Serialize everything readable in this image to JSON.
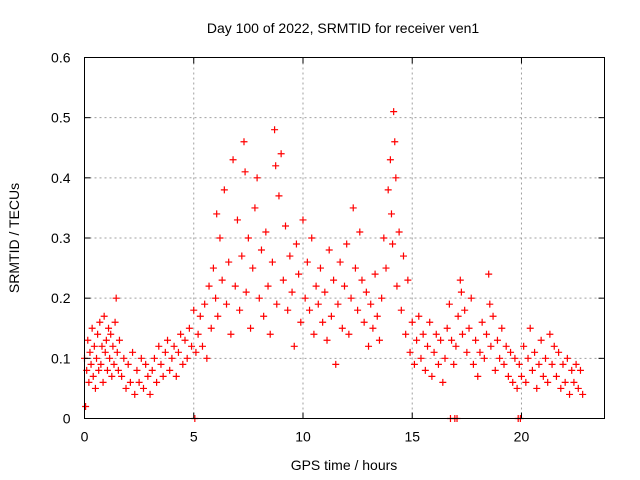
{
  "chart_data": {
    "type": "scatter",
    "title": "Day 100 of 2022, SRMTID for receiver ven1",
    "xlabel": "GPS time / hours",
    "ylabel": "SRMTID / TECUs",
    "xlim": [
      0,
      23.8
    ],
    "ylim": [
      0,
      0.6
    ],
    "xticks": [
      0,
      5,
      10,
      15,
      20
    ],
    "xtick_labels": [
      "0",
      "5",
      "10",
      "15",
      "20"
    ],
    "yticks": [
      0,
      0.1,
      0.2,
      0.3,
      0.4,
      0.5,
      0.6
    ],
    "ytick_labels": [
      "0",
      "0.1",
      "0.2",
      "0.3",
      "0.4",
      "0.5",
      "0.6"
    ],
    "grid": true,
    "marker": "plus",
    "series": [
      {
        "name": "SRMTID",
        "color": "#ff0000",
        "points": [
          [
            0.0,
            0.1
          ],
          [
            0.05,
            0.02
          ],
          [
            0.1,
            0.08
          ],
          [
            0.15,
            0.13
          ],
          [
            0.2,
            0.06
          ],
          [
            0.25,
            0.11
          ],
          [
            0.3,
            0.09
          ],
          [
            0.35,
            0.15
          ],
          [
            0.4,
            0.07
          ],
          [
            0.45,
            0.12
          ],
          [
            0.5,
            0.05
          ],
          [
            0.55,
            0.1
          ],
          [
            0.6,
            0.14
          ],
          [
            0.65,
            0.08
          ],
          [
            0.7,
            0.16
          ],
          [
            0.75,
            0.09
          ],
          [
            0.8,
            0.12
          ],
          [
            0.85,
            0.06
          ],
          [
            0.9,
            0.17
          ],
          [
            0.95,
            0.11
          ],
          [
            1.0,
            0.13
          ],
          [
            1.05,
            0.08
          ],
          [
            1.1,
            0.15
          ],
          [
            1.15,
            0.1
          ],
          [
            1.2,
            0.14
          ],
          [
            1.25,
            0.07
          ],
          [
            1.3,
            0.12
          ],
          [
            1.35,
            0.09
          ],
          [
            1.4,
            0.16
          ],
          [
            1.45,
            0.2
          ],
          [
            1.5,
            0.11
          ],
          [
            1.55,
            0.08
          ],
          [
            1.6,
            0.13
          ],
          [
            1.7,
            0.07
          ],
          [
            1.8,
            0.1
          ],
          [
            1.9,
            0.05
          ],
          [
            2.0,
            0.09
          ],
          [
            2.1,
            0.06
          ],
          [
            2.2,
            0.11
          ],
          [
            2.3,
            0.04
          ],
          [
            2.4,
            0.08
          ],
          [
            2.5,
            0.06
          ],
          [
            2.6,
            0.1
          ],
          [
            2.7,
            0.05
          ],
          [
            2.8,
            0.09
          ],
          [
            2.9,
            0.07
          ],
          [
            3.0,
            0.04
          ],
          [
            3.1,
            0.08
          ],
          [
            3.2,
            0.1
          ],
          [
            3.3,
            0.06
          ],
          [
            3.4,
            0.12
          ],
          [
            3.5,
            0.09
          ],
          [
            3.6,
            0.07
          ],
          [
            3.7,
            0.11
          ],
          [
            3.8,
            0.13
          ],
          [
            3.9,
            0.08
          ],
          [
            4.0,
            0.1
          ],
          [
            4.1,
            0.12
          ],
          [
            4.2,
            0.07
          ],
          [
            4.3,
            0.11
          ],
          [
            4.4,
            0.14
          ],
          [
            4.5,
            0.09
          ],
          [
            4.6,
            0.13
          ],
          [
            4.7,
            0.1
          ],
          [
            4.8,
            0.15
          ],
          [
            4.9,
            0.12
          ],
          [
            5.0,
            0.18
          ],
          [
            5.05,
            0.0
          ],
          [
            5.1,
            0.11
          ],
          [
            5.2,
            0.14
          ],
          [
            5.3,
            0.17
          ],
          [
            5.4,
            0.12
          ],
          [
            5.5,
            0.19
          ],
          [
            5.6,
            0.1
          ],
          [
            5.7,
            0.22
          ],
          [
            5.8,
            0.15
          ],
          [
            5.9,
            0.25
          ],
          [
            6.0,
            0.2
          ],
          [
            6.05,
            0.34
          ],
          [
            6.1,
            0.17
          ],
          [
            6.2,
            0.3
          ],
          [
            6.3,
            0.23
          ],
          [
            6.4,
            0.38
          ],
          [
            6.5,
            0.19
          ],
          [
            6.6,
            0.26
          ],
          [
            6.7,
            0.14
          ],
          [
            6.8,
            0.43
          ],
          [
            6.9,
            0.22
          ],
          [
            7.0,
            0.33
          ],
          [
            7.1,
            0.18
          ],
          [
            7.2,
            0.27
          ],
          [
            7.3,
            0.46
          ],
          [
            7.35,
            0.41
          ],
          [
            7.4,
            0.21
          ],
          [
            7.5,
            0.3
          ],
          [
            7.6,
            0.15
          ],
          [
            7.7,
            0.25
          ],
          [
            7.8,
            0.35
          ],
          [
            7.9,
            0.4
          ],
          [
            8.0,
            0.2
          ],
          [
            8.1,
            0.28
          ],
          [
            8.2,
            0.17
          ],
          [
            8.3,
            0.31
          ],
          [
            8.4,
            0.22
          ],
          [
            8.5,
            0.14
          ],
          [
            8.6,
            0.26
          ],
          [
            8.7,
            0.48
          ],
          [
            8.75,
            0.42
          ],
          [
            8.8,
            0.19
          ],
          [
            8.9,
            0.37
          ],
          [
            9.0,
            0.44
          ],
          [
            9.1,
            0.23
          ],
          [
            9.2,
            0.32
          ],
          [
            9.3,
            0.18
          ],
          [
            9.4,
            0.27
          ],
          [
            9.5,
            0.21
          ],
          [
            9.6,
            0.12
          ],
          [
            9.7,
            0.29
          ],
          [
            9.8,
            0.24
          ],
          [
            9.9,
            0.16
          ],
          [
            10.0,
            0.33
          ],
          [
            10.1,
            0.2
          ],
          [
            10.2,
            0.26
          ],
          [
            10.3,
            0.18
          ],
          [
            10.4,
            0.3
          ],
          [
            10.5,
            0.14
          ],
          [
            10.6,
            0.22
          ],
          [
            10.7,
            0.19
          ],
          [
            10.8,
            0.25
          ],
          [
            10.9,
            0.16
          ],
          [
            11.0,
            0.21
          ],
          [
            11.1,
            0.13
          ],
          [
            11.2,
            0.28
          ],
          [
            11.3,
            0.17
          ],
          [
            11.4,
            0.23
          ],
          [
            11.5,
            0.09
          ],
          [
            11.6,
            0.19
          ],
          [
            11.7,
            0.26
          ],
          [
            11.8,
            0.15
          ],
          [
            11.9,
            0.22
          ],
          [
            12.0,
            0.29
          ],
          [
            12.1,
            0.14
          ],
          [
            12.2,
            0.2
          ],
          [
            12.3,
            0.35
          ],
          [
            12.4,
            0.25
          ],
          [
            12.5,
            0.18
          ],
          [
            12.6,
            0.31
          ],
          [
            12.7,
            0.23
          ],
          [
            12.8,
            0.16
          ],
          [
            12.9,
            0.21
          ],
          [
            13.0,
            0.12
          ],
          [
            13.1,
            0.19
          ],
          [
            13.2,
            0.15
          ],
          [
            13.3,
            0.24
          ],
          [
            13.4,
            0.17
          ],
          [
            13.5,
            0.13
          ],
          [
            13.6,
            0.2
          ],
          [
            13.7,
            0.3
          ],
          [
            13.8,
            0.25
          ],
          [
            13.9,
            0.38
          ],
          [
            14.0,
            0.43
          ],
          [
            14.05,
            0.34
          ],
          [
            14.1,
            0.29
          ],
          [
            14.15,
            0.51
          ],
          [
            14.2,
            0.46
          ],
          [
            14.25,
            0.4
          ],
          [
            14.3,
            0.22
          ],
          [
            14.4,
            0.31
          ],
          [
            14.5,
            0.18
          ],
          [
            14.6,
            0.27
          ],
          [
            14.7,
            0.14
          ],
          [
            14.8,
            0.23
          ],
          [
            14.9,
            0.11
          ],
          [
            15.0,
            0.16
          ],
          [
            15.1,
            0.09
          ],
          [
            15.2,
            0.13
          ],
          [
            15.3,
            0.17
          ],
          [
            15.4,
            0.1
          ],
          [
            15.5,
            0.14
          ],
          [
            15.6,
            0.08
          ],
          [
            15.7,
            0.12
          ],
          [
            15.8,
            0.16
          ],
          [
            15.9,
            0.07
          ],
          [
            16.0,
            0.11
          ],
          [
            16.1,
            0.14
          ],
          [
            16.2,
            0.09
          ],
          [
            16.3,
            0.13
          ],
          [
            16.4,
            0.06
          ],
          [
            16.5,
            0.1
          ],
          [
            16.6,
            0.15
          ],
          [
            16.7,
            0.19
          ],
          [
            16.75,
            0.0
          ],
          [
            16.8,
            0.13
          ],
          [
            16.9,
            0.09
          ],
          [
            16.95,
            0.0
          ],
          [
            17.0,
            0.12
          ],
          [
            17.05,
            0.0
          ],
          [
            17.1,
            0.17
          ],
          [
            17.2,
            0.23
          ],
          [
            17.25,
            0.21
          ],
          [
            17.3,
            0.14
          ],
          [
            17.4,
            0.18
          ],
          [
            17.5,
            0.11
          ],
          [
            17.6,
            0.15
          ],
          [
            17.7,
            0.2
          ],
          [
            17.8,
            0.09
          ],
          [
            17.9,
            0.13
          ],
          [
            18.0,
            0.07
          ],
          [
            18.1,
            0.11
          ],
          [
            18.2,
            0.16
          ],
          [
            18.3,
            0.1
          ],
          [
            18.4,
            0.14
          ],
          [
            18.5,
            0.24
          ],
          [
            18.55,
            0.19
          ],
          [
            18.6,
            0.12
          ],
          [
            18.7,
            0.17
          ],
          [
            18.8,
            0.08
          ],
          [
            18.9,
            0.13
          ],
          [
            19.0,
            0.1
          ],
          [
            19.1,
            0.15
          ],
          [
            19.2,
            0.09
          ],
          [
            19.3,
            0.12
          ],
          [
            19.4,
            0.07
          ],
          [
            19.5,
            0.11
          ],
          [
            19.6,
            0.06
          ],
          [
            19.7,
            0.1
          ],
          [
            19.8,
            0.05
          ],
          [
            19.85,
            0.0
          ],
          [
            19.9,
            0.09
          ],
          [
            19.95,
            0.0
          ],
          [
            20.0,
            0.07
          ],
          [
            20.1,
            0.12
          ],
          [
            20.2,
            0.06
          ],
          [
            20.3,
            0.1
          ],
          [
            20.4,
            0.15
          ],
          [
            20.5,
            0.08
          ],
          [
            20.6,
            0.11
          ],
          [
            20.7,
            0.05
          ],
          [
            20.8,
            0.09
          ],
          [
            20.9,
            0.13
          ],
          [
            21.0,
            0.07
          ],
          [
            21.1,
            0.1
          ],
          [
            21.2,
            0.06
          ],
          [
            21.3,
            0.14
          ],
          [
            21.4,
            0.09
          ],
          [
            21.5,
            0.12
          ],
          [
            21.6,
            0.07
          ],
          [
            21.7,
            0.11
          ],
          [
            21.8,
            0.05
          ],
          [
            21.9,
            0.09
          ],
          [
            22.0,
            0.06
          ],
          [
            22.1,
            0.1
          ],
          [
            22.2,
            0.04
          ],
          [
            22.3,
            0.08
          ],
          [
            22.4,
            0.06
          ],
          [
            22.5,
            0.09
          ],
          [
            22.6,
            0.05
          ],
          [
            22.7,
            0.08
          ],
          [
            22.8,
            0.04
          ]
        ]
      }
    ]
  }
}
